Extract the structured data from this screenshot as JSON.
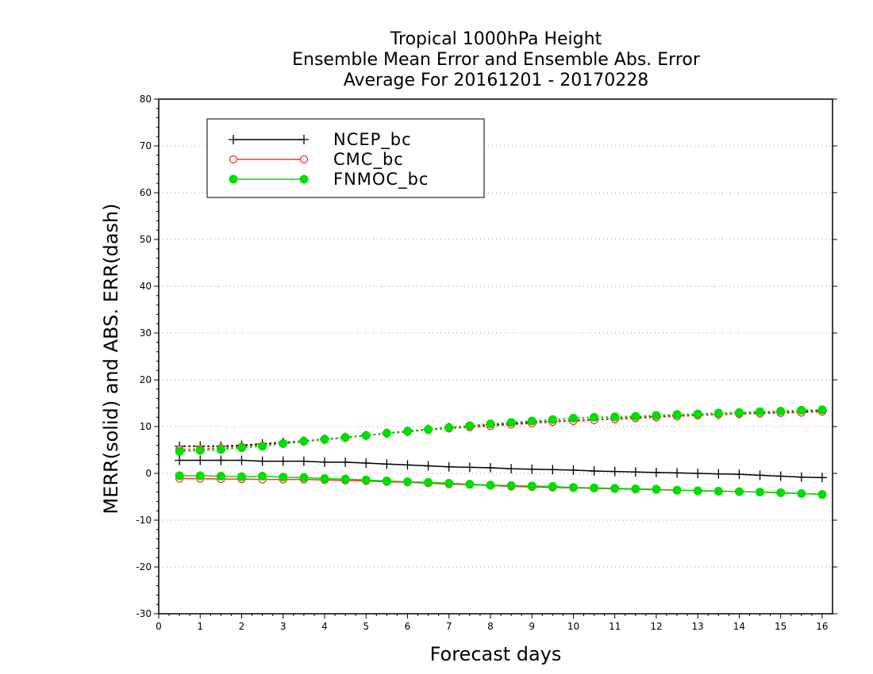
{
  "chart_data": {
    "type": "line",
    "title": [
      "Tropical 1000hPa Height",
      "Ensemble Mean Error and Ensemble Abs. Error",
      "Average For 20161201 - 20170228"
    ],
    "xlabel": "Forecast days",
    "ylabel": "MERR(solid) and ABS. ERR(dash)",
    "xlim": [
      0,
      16.25
    ],
    "ylim": [
      -30,
      80
    ],
    "xticks": [
      0,
      1,
      2,
      3,
      4,
      5,
      6,
      7,
      8,
      9,
      10,
      11,
      12,
      13,
      14,
      15,
      16
    ],
    "yticks": [
      -30,
      -20,
      -10,
      0,
      10,
      20,
      30,
      40,
      50,
      60,
      70,
      80
    ],
    "grid": "horizontal dotted",
    "legend_position": "top-left",
    "x": [
      0.5,
      1,
      1.5,
      2,
      2.5,
      3,
      3.5,
      4,
      4.5,
      5,
      5.5,
      6,
      6.5,
      7,
      7.5,
      8,
      8.5,
      9,
      9.5,
      10,
      10.5,
      11,
      11.5,
      12,
      12.5,
      13,
      13.5,
      14,
      14.5,
      15,
      15.5,
      16
    ],
    "series": [
      {
        "name": "NCEP_bc",
        "color": "#000000",
        "marker": "plus",
        "merr": [
          2.8,
          2.8,
          2.8,
          2.8,
          2.6,
          2.6,
          2.6,
          2.4,
          2.4,
          2.2,
          2.0,
          1.8,
          1.6,
          1.4,
          1.3,
          1.2,
          1.0,
          0.9,
          0.8,
          0.7,
          0.5,
          0.4,
          0.3,
          0.2,
          0.1,
          0.0,
          -0.1,
          -0.2,
          -0.4,
          -0.6,
          -0.8,
          -0.9
        ],
        "abs_err": [
          5.8,
          5.8,
          5.8,
          6.0,
          6.3,
          6.6,
          6.9,
          7.3,
          7.7,
          8.1,
          8.6,
          9.0,
          9.4,
          9.8,
          10.1,
          10.4,
          10.6,
          10.9,
          11.1,
          11.3,
          11.5,
          11.7,
          11.9,
          12.1,
          12.3,
          12.5,
          12.6,
          12.8,
          12.9,
          13.1,
          13.2,
          13.4
        ]
      },
      {
        "name": "CMC_bc",
        "color": "#ff3030",
        "marker": "open-circle",
        "merr": [
          -1.1,
          -1.1,
          -1.2,
          -1.2,
          -1.3,
          -1.3,
          -1.3,
          -1.4,
          -1.5,
          -1.6,
          -1.8,
          -1.9,
          -2.1,
          -2.3,
          -2.4,
          -2.6,
          -2.8,
          -2.9,
          -3.0,
          -3.1,
          -3.2,
          -3.3,
          -3.4,
          -3.5,
          -3.6,
          -3.7,
          -3.8,
          -3.9,
          -4.0,
          -4.2,
          -4.3,
          -4.5
        ],
        "abs_err": [
          5.1,
          5.2,
          5.4,
          5.7,
          5.9,
          6.3,
          6.8,
          7.2,
          7.6,
          8.1,
          8.5,
          8.9,
          9.3,
          9.6,
          9.9,
          10.1,
          10.4,
          10.7,
          11.0,
          11.2,
          11.4,
          11.6,
          11.8,
          12.0,
          12.2,
          12.4,
          12.6,
          12.7,
          12.8,
          12.9,
          13.0,
          13.2
        ]
      },
      {
        "name": "FNMOC_bc",
        "color": "#00dd00",
        "marker": "filled-circle",
        "merr": [
          -0.5,
          -0.5,
          -0.6,
          -0.7,
          -0.6,
          -0.8,
          -0.9,
          -1.1,
          -1.2,
          -1.4,
          -1.6,
          -1.8,
          -1.9,
          -2.1,
          -2.3,
          -2.5,
          -2.6,
          -2.7,
          -2.8,
          -3.0,
          -3.1,
          -3.2,
          -3.3,
          -3.4,
          -3.6,
          -3.7,
          -3.8,
          -3.9,
          -4.0,
          -4.1,
          -4.3,
          -4.5
        ],
        "abs_err": [
          4.7,
          4.9,
          5.1,
          5.5,
          5.8,
          6.4,
          6.9,
          7.3,
          7.7,
          8.1,
          8.6,
          9.0,
          9.4,
          9.8,
          10.2,
          10.6,
          10.9,
          11.2,
          11.5,
          11.8,
          12.0,
          12.1,
          12.2,
          12.4,
          12.6,
          12.7,
          12.9,
          13.0,
          13.2,
          13.3,
          13.5,
          13.6
        ]
      }
    ]
  }
}
